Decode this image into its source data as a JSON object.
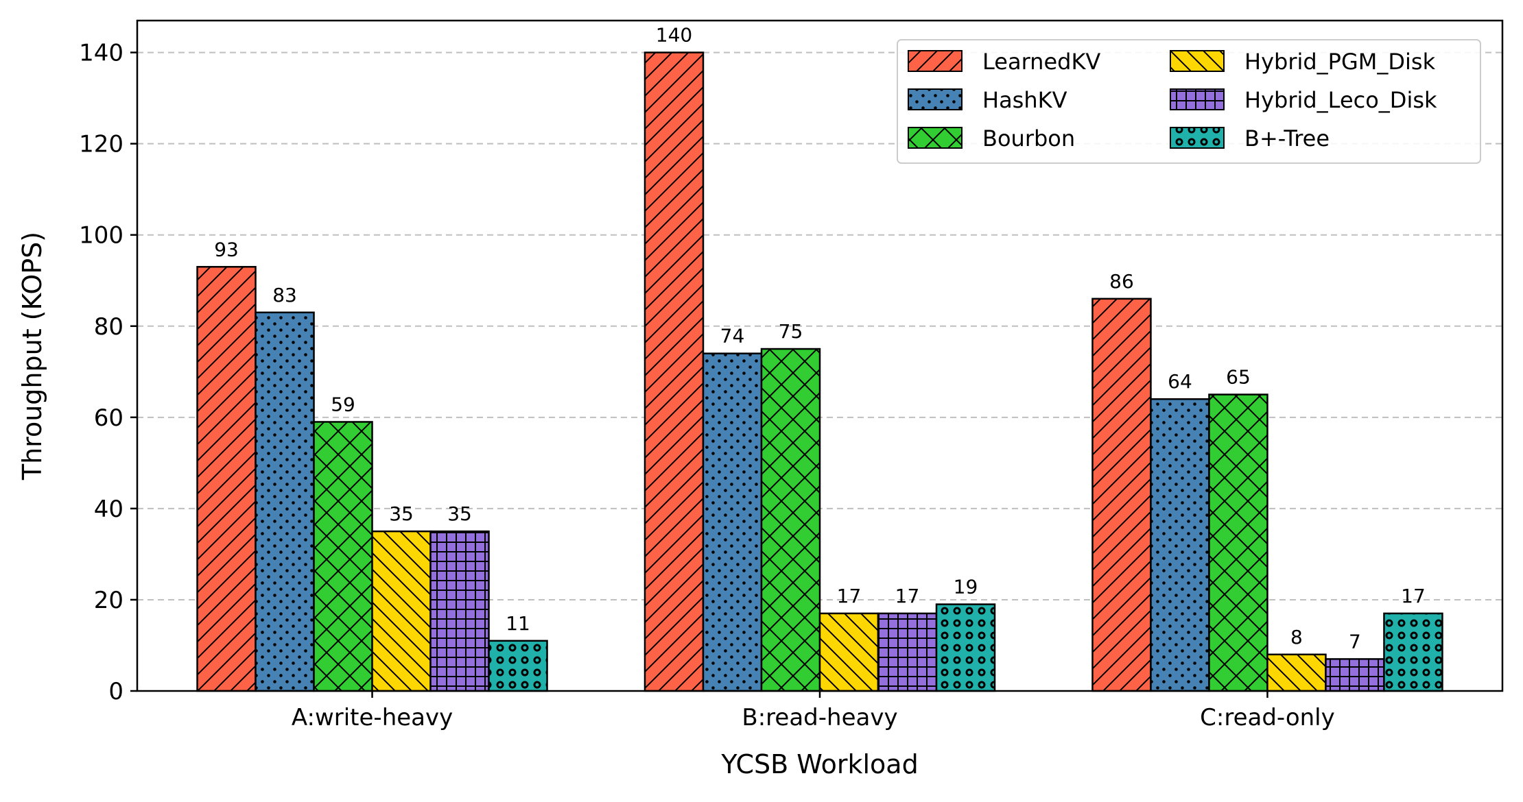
{
  "chart_data": {
    "type": "bar",
    "title": "",
    "xlabel": "YCSB Workload",
    "ylabel": "Throughput (KOPS)",
    "categories": [
      "A:write-heavy",
      "B:read-heavy",
      "C:read-only"
    ],
    "ylim": [
      0,
      147
    ],
    "yticks": [
      0,
      20,
      40,
      60,
      80,
      100,
      120,
      140
    ],
    "grid": "y-dashed",
    "legend_placement": "top-right",
    "legend_columns": 2,
    "series": [
      {
        "name": "LearnedKV",
        "values": [
          93,
          140,
          86
        ],
        "color": "#FF6347",
        "pattern": "diagonal-hatch"
      },
      {
        "name": "HashKV",
        "values": [
          83,
          74,
          64
        ],
        "color": "#4682B4",
        "pattern": "dots"
      },
      {
        "name": "Bourbon",
        "values": [
          59,
          75,
          65
        ],
        "color": "#32CD32",
        "pattern": "cross-hatch"
      },
      {
        "name": "Hybrid_PGM_Disk",
        "values": [
          35,
          17,
          8
        ],
        "color": "#FFD700",
        "pattern": "back-diagonal-hatch"
      },
      {
        "name": "Hybrid_Leco_Disk",
        "values": [
          35,
          17,
          7
        ],
        "color": "#9370DB",
        "pattern": "grid"
      },
      {
        "name": "B+-Tree",
        "values": [
          11,
          19,
          17
        ],
        "color": "#20B2AA",
        "pattern": "large-dots"
      }
    ]
  }
}
